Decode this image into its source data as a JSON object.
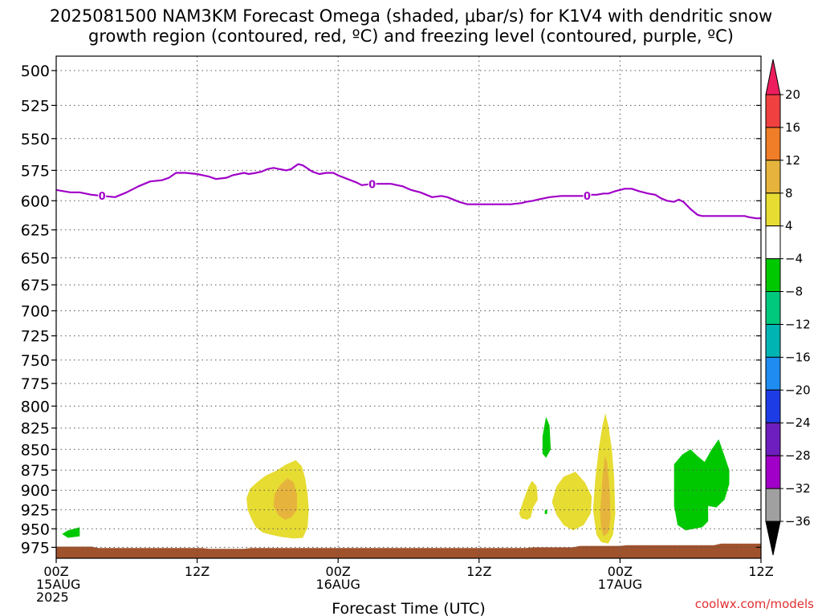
{
  "chart_data": {
    "type": "heatmap",
    "title_lines": [
      "2025081500 NAM3KM Forecast Omega (shaded, μbar/s) for K1V4 with dendritic snow",
      "growth region (contoured, red, ºC) and freezing level (contoured, purple, ºC)"
    ],
    "xlabel": "Forecast Time (UTC)",
    "x_range_hours": [
      0,
      60
    ],
    "y_scale": "pressure (log), inverted",
    "y_range_mb": [
      490,
      990
    ],
    "grid": true,
    "y_ticks": [
      500,
      525,
      550,
      575,
      600,
      625,
      650,
      675,
      700,
      725,
      750,
      775,
      800,
      825,
      850,
      875,
      900,
      925,
      950,
      975
    ],
    "x_ticks": [
      {
        "hour": 0,
        "lines": [
          "00Z",
          "15AUG",
          "2025"
        ]
      },
      {
        "hour": 12,
        "lines": [
          "12Z"
        ]
      },
      {
        "hour": 24,
        "lines": [
          "00Z",
          "16AUG"
        ]
      },
      {
        "hour": 36,
        "lines": [
          "12Z"
        ]
      },
      {
        "hour": 48,
        "lines": [
          "00Z",
          "17AUG"
        ]
      },
      {
        "hour": 60,
        "lines": [
          "12Z"
        ]
      }
    ],
    "colorbar": {
      "labels": [
        "20",
        "16",
        "12",
        "8",
        "4",
        "−4",
        "−8",
        "−12",
        "−16",
        "−20",
        "−24",
        "−28",
        "−32",
        "−36"
      ],
      "colors": [
        "#ee1e5e",
        "#f04040",
        "#f07d28",
        "#e6b43c",
        "#e6dc32",
        "#ffffff",
        "#00c800",
        "#00c87d",
        "#00b4b4",
        "#1e8cf0",
        "#1e3ce6",
        "#6e1ebe",
        "#a000c8",
        "#a0a0a0",
        "#000000"
      ]
    },
    "freezing_level": {
      "label": "0",
      "color": "#a000c8",
      "label_hours": [
        3.9,
        26.9,
        45.2
      ],
      "points": [
        [
          0,
          591
        ],
        [
          1.2,
          593
        ],
        [
          2,
          593
        ],
        [
          3,
          595
        ],
        [
          4,
          596
        ],
        [
          5,
          597
        ],
        [
          6,
          593
        ],
        [
          7,
          588
        ],
        [
          8,
          584
        ],
        [
          9,
          583
        ],
        [
          9.6,
          581
        ],
        [
          10.2,
          577
        ],
        [
          11,
          577
        ],
        [
          12,
          578
        ],
        [
          12.5,
          579
        ],
        [
          13,
          580
        ],
        [
          13.6,
          582
        ],
        [
          14.5,
          581
        ],
        [
          15,
          579
        ],
        [
          16,
          577
        ],
        [
          16.4,
          578
        ],
        [
          17,
          577
        ],
        [
          17.5,
          576
        ],
        [
          18,
          574
        ],
        [
          18.5,
          573
        ],
        [
          19,
          574
        ],
        [
          19.6,
          575
        ],
        [
          20,
          574
        ],
        [
          20.6,
          570
        ],
        [
          21,
          571
        ],
        [
          21.8,
          576
        ],
        [
          22.4,
          578
        ],
        [
          23,
          577
        ],
        [
          23.6,
          577
        ],
        [
          24,
          579
        ],
        [
          24.8,
          582
        ],
        [
          25.6,
          585
        ],
        [
          26,
          587
        ],
        [
          27,
          586
        ],
        [
          28.5,
          586
        ],
        [
          29.5,
          588
        ],
        [
          30.2,
          591
        ],
        [
          31,
          593
        ],
        [
          31.5,
          595
        ],
        [
          32,
          597
        ],
        [
          32.8,
          596
        ],
        [
          33.3,
          597
        ],
        [
          34.3,
          601
        ],
        [
          35,
          603
        ],
        [
          37,
          603
        ],
        [
          38,
          603
        ],
        [
          38.7,
          603
        ],
        [
          39.6,
          602
        ],
        [
          40,
          601
        ],
        [
          40.6,
          600
        ],
        [
          41,
          599
        ],
        [
          42,
          597
        ],
        [
          43,
          596
        ],
        [
          44,
          596
        ],
        [
          45,
          596
        ],
        [
          45.6,
          595
        ],
        [
          46,
          595
        ],
        [
          46.6,
          594
        ],
        [
          47,
          594
        ],
        [
          47.6,
          592
        ],
        [
          48,
          591
        ],
        [
          48.4,
          590
        ],
        [
          49,
          590
        ],
        [
          49.6,
          592
        ],
        [
          50,
          593
        ],
        [
          50.4,
          594
        ],
        [
          51,
          595
        ],
        [
          51.5,
          598
        ],
        [
          52,
          600
        ],
        [
          52.6,
          601
        ],
        [
          53,
          599
        ],
        [
          53.4,
          601
        ],
        [
          54,
          607
        ],
        [
          54.6,
          612
        ],
        [
          55,
          613
        ],
        [
          57,
          613
        ],
        [
          58,
          613
        ],
        [
          58.6,
          613
        ],
        [
          59,
          614
        ],
        [
          59.6,
          615
        ],
        [
          60,
          615
        ]
      ]
    },
    "shaded_regions": [
      {
        "color": "#00c800",
        "points": [
          [
            1,
            952
          ],
          [
            2,
            948
          ],
          [
            2,
            960
          ],
          [
            1,
            962
          ],
          [
            0.5,
            957
          ]
        ]
      },
      {
        "color": "#e6dc32",
        "points": [
          [
            16.2,
            910
          ],
          [
            16.5,
            898
          ],
          [
            17.1,
            890
          ],
          [
            17.8,
            882
          ],
          [
            18.7,
            876
          ],
          [
            19.6,
            868
          ],
          [
            20.4,
            863
          ],
          [
            20.9,
            870
          ],
          [
            21.2,
            885
          ],
          [
            21.4,
            905
          ],
          [
            21.5,
            925
          ],
          [
            21.4,
            948
          ],
          [
            21.0,
            962
          ],
          [
            20.2,
            963
          ],
          [
            19.2,
            961
          ],
          [
            18.3,
            958
          ],
          [
            17.6,
            955
          ],
          [
            17.0,
            948
          ],
          [
            16.6,
            936
          ],
          [
            16.3,
            925
          ]
        ]
      },
      {
        "color": "#e6b43c",
        "points": [
          [
            18.6,
            905
          ],
          [
            19.1,
            893
          ],
          [
            19.7,
            885
          ],
          [
            20.2,
            890
          ],
          [
            20.5,
            905
          ],
          [
            20.5,
            925
          ],
          [
            20.0,
            935
          ],
          [
            19.5,
            938
          ],
          [
            18.9,
            932
          ],
          [
            18.5,
            920
          ]
        ]
      },
      {
        "color": "#e6dc32",
        "points": [
          [
            39.4,
            930
          ],
          [
            39.8,
            912
          ],
          [
            40.2,
            896
          ],
          [
            40.5,
            888
          ],
          [
            40.9,
            895
          ],
          [
            41,
            912
          ],
          [
            40.6,
            922
          ],
          [
            40.4,
            935
          ],
          [
            40.1,
            938
          ],
          [
            39.6,
            936
          ]
        ]
      },
      {
        "color": "#e6dc32",
        "points": [
          [
            42.2,
            915
          ],
          [
            42.6,
            895
          ],
          [
            43.2,
            883
          ],
          [
            44.2,
            877
          ],
          [
            45.0,
            890
          ],
          [
            45.6,
            908
          ],
          [
            45.5,
            930
          ],
          [
            44.9,
            945
          ],
          [
            44.0,
            952
          ],
          [
            43.2,
            945
          ],
          [
            42.6,
            932
          ]
        ]
      },
      {
        "color": "#e6dc32",
        "points": [
          [
            45.7,
            925
          ],
          [
            45.9,
            885
          ],
          [
            46.2,
            848
          ],
          [
            46.5,
            822
          ],
          [
            46.75,
            808
          ],
          [
            47.0,
            822
          ],
          [
            47.3,
            850
          ],
          [
            47.5,
            885
          ],
          [
            47.6,
            930
          ],
          [
            47.4,
            958
          ],
          [
            47.0,
            970
          ],
          [
            46.4,
            968
          ],
          [
            46.0,
            958
          ]
        ]
      },
      {
        "color": "#e6b43c",
        "points": [
          [
            46.3,
            930
          ],
          [
            46.5,
            885
          ],
          [
            46.7,
            858
          ],
          [
            46.9,
            865
          ],
          [
            47.1,
            895
          ],
          [
            47.2,
            935
          ],
          [
            47.0,
            955
          ],
          [
            46.6,
            960
          ],
          [
            46.4,
            950
          ]
        ]
      },
      {
        "color": "#00c800",
        "points": [
          [
            41.4,
            835
          ],
          [
            41.7,
            812
          ],
          [
            42.0,
            822
          ],
          [
            42.1,
            850
          ],
          [
            41.7,
            860
          ],
          [
            41.4,
            855
          ]
        ]
      },
      {
        "color": "#00c800",
        "points": [
          [
            41.6,
            926
          ],
          [
            41.8,
            924
          ],
          [
            41.8,
            930
          ],
          [
            41.6,
            931
          ]
        ]
      },
      {
        "color": "#00c800",
        "points": [
          [
            52.6,
            868
          ],
          [
            53.3,
            856
          ],
          [
            54.0,
            850
          ],
          [
            54.6,
            858
          ],
          [
            55.2,
            865
          ],
          [
            55.8,
            850
          ],
          [
            56.4,
            838
          ],
          [
            56.9,
            858
          ],
          [
            57.3,
            875
          ],
          [
            57.3,
            892
          ],
          [
            56.9,
            912
          ],
          [
            56.2,
            922
          ],
          [
            55.5,
            920
          ],
          [
            55.5,
            940
          ],
          [
            55.0,
            948
          ],
          [
            54.3,
            950
          ],
          [
            53.6,
            952
          ],
          [
            52.9,
            945
          ],
          [
            52.6,
            920
          ],
          [
            52.6,
            895
          ]
        ]
      }
    ],
    "terrain": {
      "color": "#a0522d",
      "points": [
        [
          0,
          974
        ],
        [
          3,
          974
        ],
        [
          3.6,
          976
        ],
        [
          10,
          976
        ],
        [
          12.4,
          976
        ],
        [
          13,
          977
        ],
        [
          16,
          977
        ],
        [
          16.6,
          976
        ],
        [
          20,
          976
        ],
        [
          40,
          976
        ],
        [
          40.6,
          975
        ],
        [
          44,
          975
        ],
        [
          44.6,
          973
        ],
        [
          48,
          973
        ],
        [
          48.6,
          972
        ],
        [
          56,
          972
        ],
        [
          56.6,
          970
        ],
        [
          60,
          970
        ]
      ]
    }
  },
  "credit": "coolwx.com/models"
}
